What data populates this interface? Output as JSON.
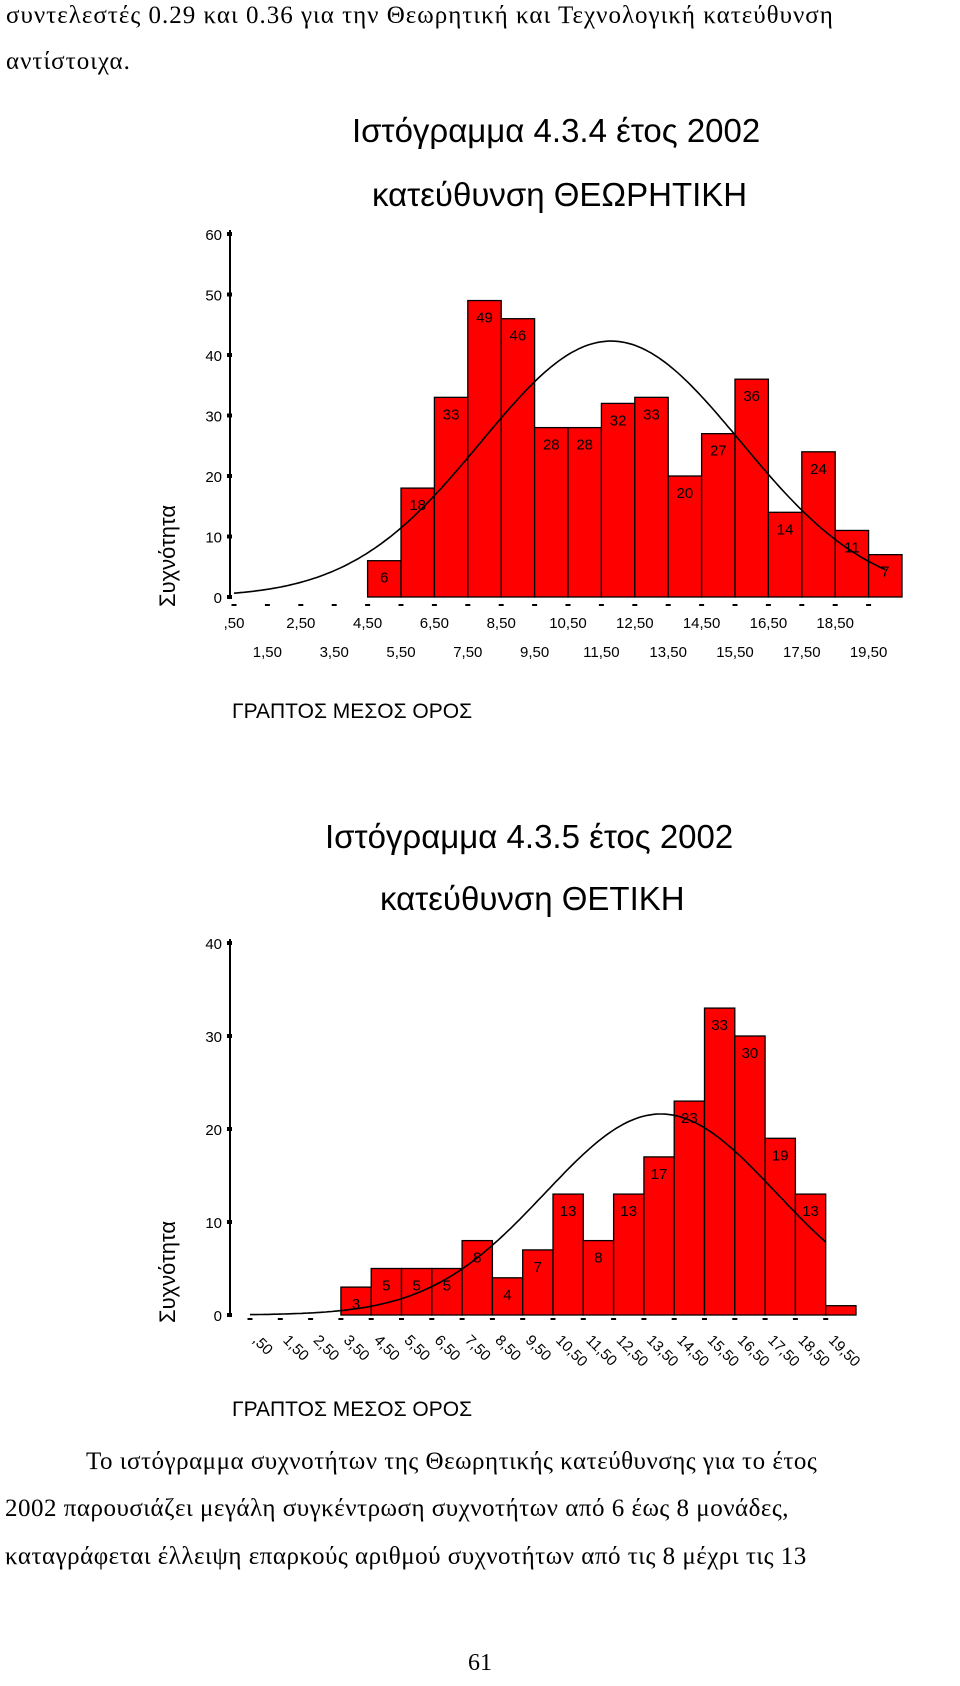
{
  "intro": {
    "line1": "συντελεστές 0.29 και 0.36 για την Θεωρητική και Τεχνολογική κατεύθυνση",
    "line2": "αντίστοιχα."
  },
  "chart1": {
    "title_line1": "Ιστόγραμμα 4.3.4 έτος 2002",
    "title_line2": "κατεύθυνση ΘΕΩΡΗΤΙΚΗ",
    "ylabel": "Συχνότητα",
    "xlabel": "ΓΡΑΠΤΟΣ ΜΕΣΟΣ ΟΡΟΣ"
  },
  "chart2": {
    "title_line1": "Ιστόγραμμα 4.3.5 έτος 2002",
    "title_line2": "κατεύθυνση ΘΕΤΙΚΗ",
    "ylabel": "Συχνότητα",
    "xlabel": "ΓΡΑΠΤΟΣ ΜΕΣΟΣ ΟΡΟΣ"
  },
  "paragraph": {
    "line1": "Το ιστόγραμμα συχνοτήτων της Θεωρητικής κατεύθυνσης για το έτος",
    "line2": "2002 παρουσιάζει μεγάλη συγκέντρωση συχνοτήτων από 6 έως 8 μονάδες,",
    "line3": "καταγράφεται έλλειψη επαρκούς αριθμού συχνοτήτων από τις 8 μέχρι τις 13"
  },
  "page_number": "61",
  "chart_data": [
    {
      "type": "bar",
      "title": "Ιστόγραμμα 4.3.4 έτος 2002 κατεύθυνση ΘΕΩΡΗΤΙΚΗ",
      "xlabel": "ΓΡΑΠΤΟΣ ΜΕΣΟΣ ΟΡΟΣ",
      "ylabel": "Συχνότητα",
      "ylim": [
        0,
        60
      ],
      "yticks": [
        0,
        10,
        20,
        30,
        40,
        50,
        60
      ],
      "xticks_row1": [
        ",50",
        "2,50",
        "4,50",
        "6,50",
        "8,50",
        "10,50",
        "12,50",
        "14,50",
        "16,50",
        "18,50"
      ],
      "xticks_row2": [
        "1,50",
        "3,50",
        "5,50",
        "7,50",
        "9,50",
        "11,50",
        "13,50",
        "15,50",
        "17,50",
        "19,50"
      ],
      "bar_start": 4.5,
      "bar_width": 1,
      "values": [
        6,
        18,
        33,
        49,
        46,
        28,
        28,
        32,
        33,
        20,
        27,
        36,
        14,
        24,
        11,
        7
      ],
      "bar_color": "#ff0000",
      "curve": "normal"
    },
    {
      "type": "bar",
      "title": "Ιστόγραμμα 4.3.5 έτος 2002 κατεύθυνση ΘΕΤΙΚΗ",
      "xlabel": "ΓΡΑΠΤΟΣ ΜΕΣΟΣ ΟΡΟΣ",
      "ylabel": "Συχνότητα",
      "ylim": [
        0,
        40
      ],
      "yticks": [
        0,
        10,
        20,
        30,
        40
      ],
      "xticks": [
        ",50",
        "1,50",
        "2,50",
        "3,50",
        "4,50",
        "5,50",
        "6,50",
        "7,50",
        "8,50",
        "9,50",
        "10,50",
        "11,50",
        "12,50",
        "13,50",
        "14,50",
        "15,50",
        "16,50",
        "17,50",
        "18,50",
        "19,50"
      ],
      "bar_start": 3.5,
      "bar_width": 1,
      "values": [
        3,
        5,
        5,
        5,
        8,
        4,
        7,
        13,
        8,
        13,
        17,
        23,
        33,
        30,
        19,
        13,
        1
      ],
      "data_labels": [
        "3",
        "5",
        "5",
        "5",
        "8",
        "4",
        "7",
        "13",
        "8",
        "13",
        "17",
        "23",
        "33",
        "30",
        "19",
        "13",
        ""
      ],
      "bar_color": "#ff0000",
      "curve": "normal"
    }
  ]
}
